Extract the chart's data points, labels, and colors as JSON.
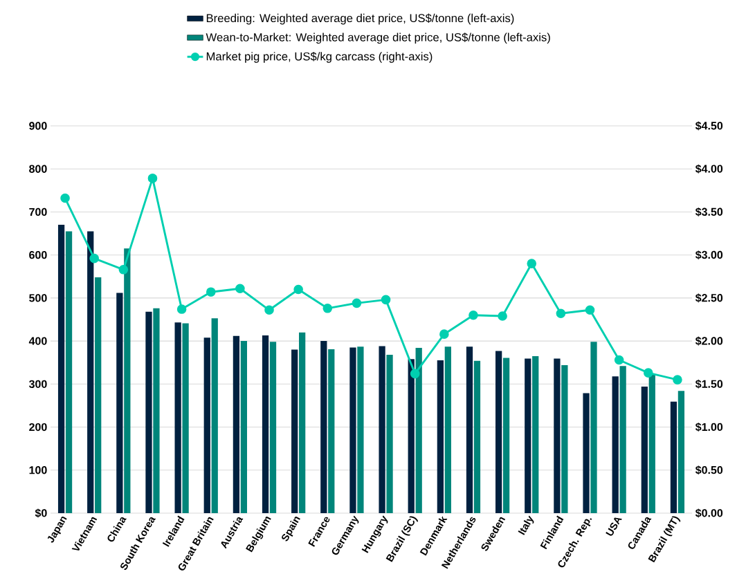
{
  "chart_data": {
    "type": "bar",
    "categories": [
      "Japan",
      "Vietnam",
      "China",
      "South Korea",
      "Ireland",
      "Great Britain",
      "Austria",
      "Belgium",
      "Spain",
      "France",
      "Germany",
      "Hungary",
      "Brazil (SC)",
      "Denmark",
      "Netherlands",
      "Sweden",
      "Italy",
      "Finland",
      "Czech. Rep.",
      "USA",
      "Canada",
      "Brazil (MT)"
    ],
    "series": [
      {
        "name": "Breeding: Weighted average diet price, US$/tonne (left-axis)",
        "color": "#002140",
        "values": [
          670,
          655,
          512,
          468,
          443,
          408,
          412,
          413,
          380,
          400,
          385,
          388,
          358,
          355,
          387,
          377,
          359,
          359,
          279,
          318,
          294,
          259
        ]
      },
      {
        "name": "Wean-to-Market: Weighted average diet price, US$/tonne (left-axis)",
        "color": "#00857a",
        "values": [
          655,
          548,
          615,
          476,
          441,
          453,
          400,
          398,
          420,
          381,
          387,
          368,
          384,
          387,
          354,
          361,
          365,
          344,
          398,
          342,
          322,
          284
        ]
      },
      {
        "name": "Market pig price, US$/kg carcass (right-axis)",
        "color": "#00cfb0",
        "type": "line",
        "axis": "y2",
        "values": [
          3.66,
          2.96,
          2.83,
          3.89,
          2.37,
          2.57,
          2.61,
          2.36,
          2.6,
          2.38,
          2.44,
          2.48,
          1.62,
          2.08,
          2.3,
          2.29,
          2.9,
          2.32,
          2.36,
          1.78,
          1.63,
          1.55
        ]
      }
    ],
    "ylim": [
      0,
      900
    ],
    "yticks": [
      {
        "value": 0,
        "label": "$0"
      },
      100,
      200,
      300,
      400,
      500,
      600,
      700,
      800,
      900
    ],
    "y2lim": [
      0,
      4.5
    ],
    "y2ticks": [
      {
        "value": 0,
        "label": "$0.00"
      },
      {
        "value": 0.5,
        "label": "$0.50"
      },
      {
        "value": 1,
        "label": "$1.00"
      },
      {
        "value": 1.5,
        "label": "$1.50"
      },
      {
        "value": 2,
        "label": "$2.00"
      },
      {
        "value": 2.5,
        "label": "$2.50"
      },
      {
        "value": 3,
        "label": "$3.00"
      },
      {
        "value": 3.5,
        "label": "$3.50"
      },
      {
        "value": 4,
        "label": "$4.00"
      },
      {
        "value": 4.5,
        "label": "$4.50"
      }
    ],
    "grid": "y",
    "legend": "top",
    "marker": "circle"
  }
}
